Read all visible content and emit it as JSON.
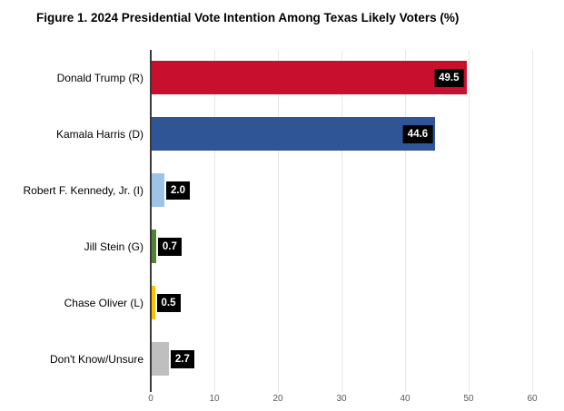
{
  "chart_data": {
    "type": "bar",
    "orientation": "horizontal",
    "title": "Figure 1. 2024 Presidential Vote Intention Among Texas Likely Voters (%)",
    "categories": [
      "Donald Trump (R)",
      "Kamala Harris (D)",
      "Robert F. Kennedy, Jr. (I)",
      "Jill Stein (G)",
      "Chase Oliver (L)",
      "Don't Know/Unsure"
    ],
    "values": [
      49.5,
      44.6,
      2.0,
      0.7,
      0.5,
      2.7
    ],
    "xlabel": "",
    "ylabel": "",
    "xlim": [
      0,
      60
    ],
    "x_ticks": [
      "0",
      "10",
      "20",
      "30",
      "40",
      "50",
      "60"
    ],
    "grid": true,
    "legend": false,
    "bars": [
      {
        "label": "Donald Trump (R)",
        "value": 49.5,
        "value_text": "49.5",
        "color": "#c8102e",
        "value_label_placement": "inside"
      },
      {
        "label": "Kamala Harris (D)",
        "value": 44.6,
        "value_text": "44.6",
        "color": "#2f5597",
        "value_label_placement": "inside"
      },
      {
        "label": "Robert F. Kennedy, Jr. (I)",
        "value": 2.0,
        "value_text": "2.0",
        "color": "#9dc3e6",
        "value_label_placement": "outside"
      },
      {
        "label": "Jill Stein (G)",
        "value": 0.7,
        "value_text": "0.7",
        "color": "#548235",
        "value_label_placement": "outside"
      },
      {
        "label": "Chase Oliver (L)",
        "value": 0.5,
        "value_text": "0.5",
        "color": "#ffc000",
        "value_label_placement": "outside"
      },
      {
        "label": "Don't Know/Unsure",
        "value": 2.7,
        "value_text": "2.7",
        "color": "#bfbfbf",
        "value_label_placement": "outside"
      }
    ],
    "colors": {
      "value_label_bg": "#000000",
      "value_label_text": "#ffffff",
      "gridline": "#e7e7e7",
      "axis_line": "#3a3a3a",
      "tick_label": "#595959",
      "background": "#ffffff"
    }
  }
}
